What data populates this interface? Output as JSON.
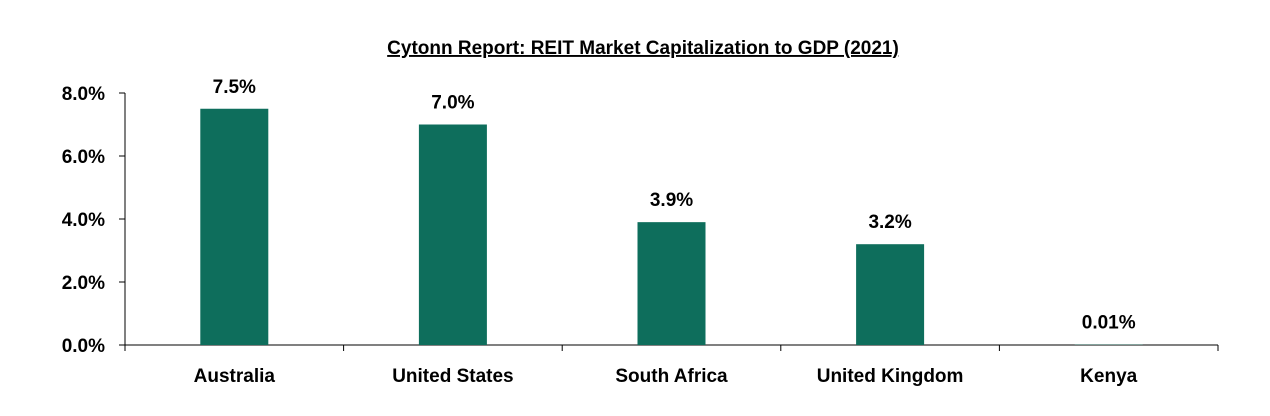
{
  "chart_data": {
    "type": "bar",
    "title": "Cytonn Report: REIT Market Capitalization to GDP (2021)",
    "categories": [
      "Australia",
      "United States",
      "South Africa",
      "United Kingdom",
      "Kenya"
    ],
    "values": [
      7.5,
      7.0,
      3.9,
      3.2,
      0.01
    ],
    "data_labels": [
      "7.5%",
      "7.0%",
      "3.9%",
      "3.2%",
      "0.01%"
    ],
    "ylim": [
      0,
      8
    ],
    "yticks": [
      0,
      2,
      4,
      6,
      8
    ],
    "ytick_labels": [
      "0.0%",
      "2.0%",
      "4.0%",
      "6.0%",
      "8.0%"
    ],
    "xlabel": "",
    "ylabel": "",
    "grid": false,
    "legend": "none",
    "colors": {
      "bar": "#0e6e5c",
      "axis": "#000000",
      "text": "#000000"
    }
  }
}
